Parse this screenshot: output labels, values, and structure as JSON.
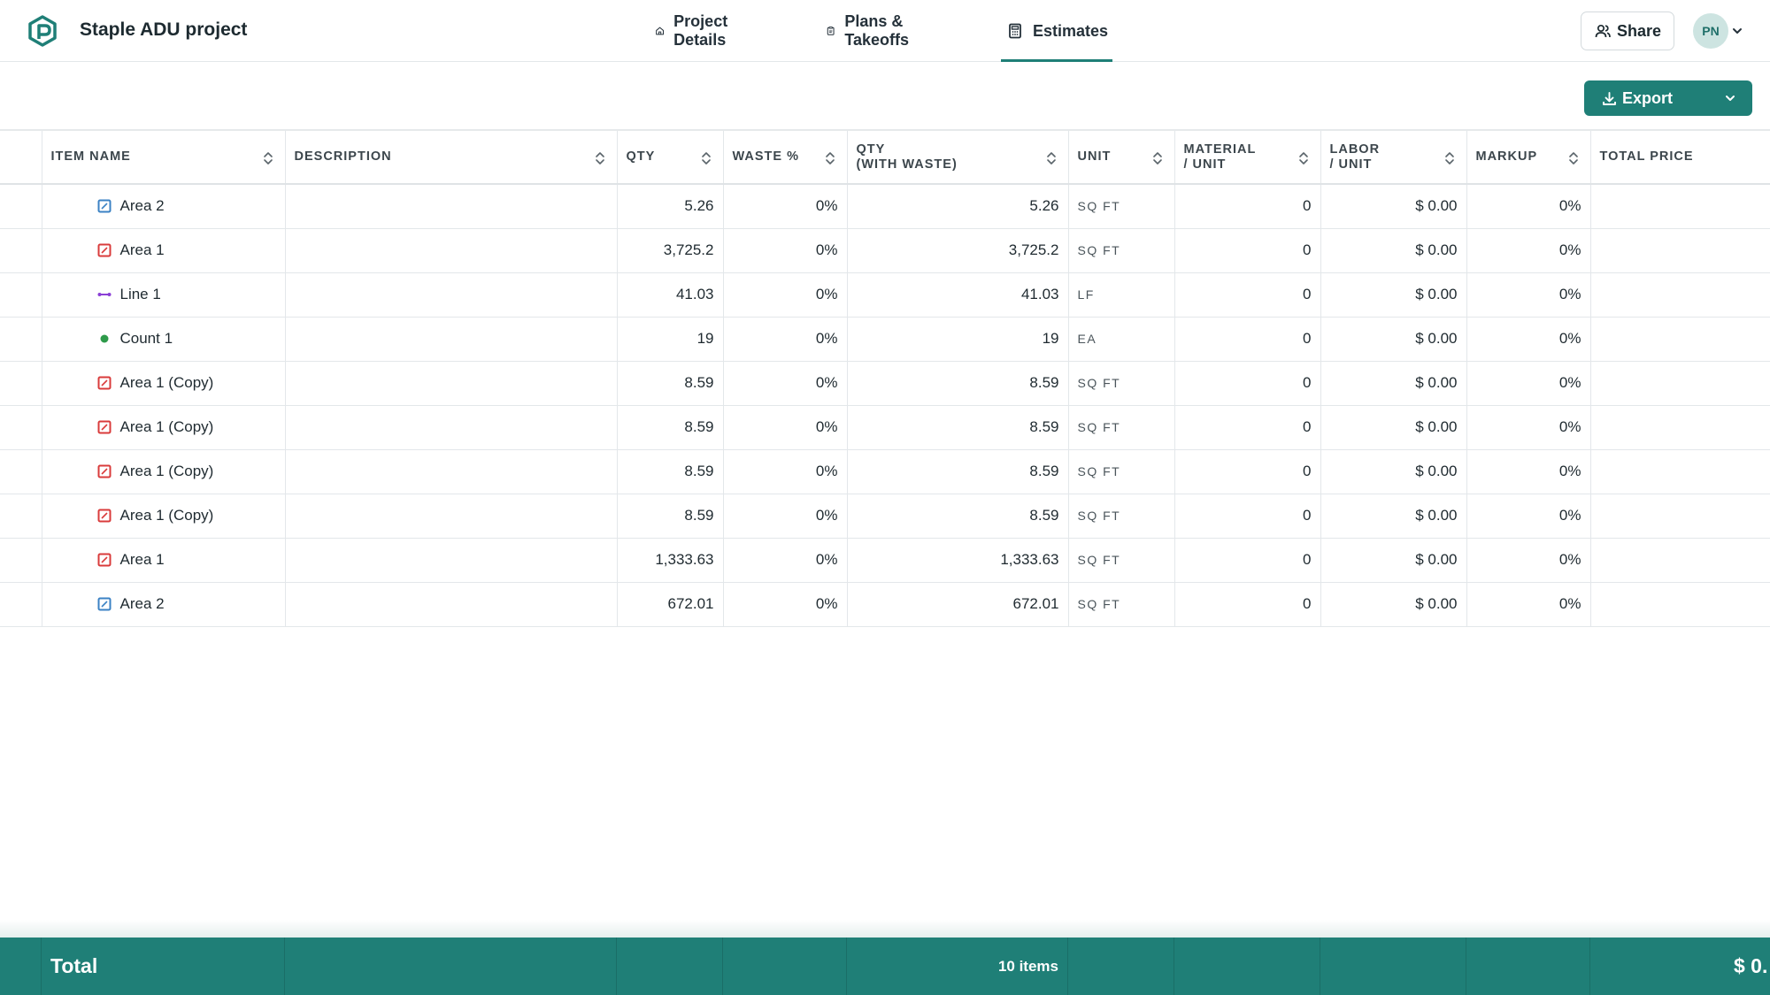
{
  "header": {
    "project_title": "Staple ADU project",
    "tabs": [
      {
        "label": "Project Details",
        "icon": "home-icon"
      },
      {
        "label": "Plans & Takeoffs",
        "icon": "clipboard-icon"
      },
      {
        "label": "Estimates",
        "icon": "calculator-icon",
        "active": true
      }
    ],
    "share_label": "Share",
    "avatar_initials": "PN"
  },
  "toolbar": {
    "export_label": "Export"
  },
  "table": {
    "columns": {
      "item_name": "ITEM NAME",
      "description": "DESCRIPTION",
      "qty": "QTY",
      "waste": "WASTE %",
      "qty_waste_1": "QTY",
      "qty_waste_2": "(WITH WASTE)",
      "unit": "UNIT",
      "material_1": "MATERIAL",
      "material_2": "/ UNIT",
      "labor_1": "LABOR",
      "labor_2": "/ UNIT",
      "markup": "MARKUP",
      "total_price": "TOTAL PRICE"
    },
    "rows": [
      {
        "type": "area-blue",
        "name": "Area 2",
        "description": "",
        "qty": "5.26",
        "waste": "0%",
        "qty_waste": "5.26",
        "unit": "SQ FT",
        "material": "0",
        "labor": "$ 0.00",
        "markup": "0%",
        "total": ""
      },
      {
        "type": "area-red",
        "name": "Area 1",
        "description": "",
        "qty": "3,725.2",
        "waste": "0%",
        "qty_waste": "3,725.2",
        "unit": "SQ FT",
        "material": "0",
        "labor": "$ 0.00",
        "markup": "0%",
        "total": ""
      },
      {
        "type": "line-purple",
        "name": "Line 1",
        "description": "",
        "qty": "41.03",
        "waste": "0%",
        "qty_waste": "41.03",
        "unit": "LF",
        "material": "0",
        "labor": "$ 0.00",
        "markup": "0%",
        "total": ""
      },
      {
        "type": "count-green",
        "name": "Count 1",
        "description": "",
        "qty": "19",
        "waste": "0%",
        "qty_waste": "19",
        "unit": "EA",
        "material": "0",
        "labor": "$ 0.00",
        "markup": "0%",
        "total": ""
      },
      {
        "type": "area-red",
        "name": "Area 1 (Copy)",
        "description": "",
        "qty": "8.59",
        "waste": "0%",
        "qty_waste": "8.59",
        "unit": "SQ FT",
        "material": "0",
        "labor": "$ 0.00",
        "markup": "0%",
        "total": ""
      },
      {
        "type": "area-red",
        "name": "Area 1 (Copy)",
        "description": "",
        "qty": "8.59",
        "waste": "0%",
        "qty_waste": "8.59",
        "unit": "SQ FT",
        "material": "0",
        "labor": "$ 0.00",
        "markup": "0%",
        "total": ""
      },
      {
        "type": "area-red",
        "name": "Area 1 (Copy)",
        "description": "",
        "qty": "8.59",
        "waste": "0%",
        "qty_waste": "8.59",
        "unit": "SQ FT",
        "material": "0",
        "labor": "$ 0.00",
        "markup": "0%",
        "total": ""
      },
      {
        "type": "area-red",
        "name": "Area 1 (Copy)",
        "description": "",
        "qty": "8.59",
        "waste": "0%",
        "qty_waste": "8.59",
        "unit": "SQ FT",
        "material": "0",
        "labor": "$ 0.00",
        "markup": "0%",
        "total": ""
      },
      {
        "type": "area-red",
        "name": "Area 1",
        "description": "",
        "qty": "1,333.63",
        "waste": "0%",
        "qty_waste": "1,333.63",
        "unit": "SQ FT",
        "material": "0",
        "labor": "$ 0.00",
        "markup": "0%",
        "total": ""
      },
      {
        "type": "area-blue",
        "name": "Area 2",
        "description": "",
        "qty": "672.01",
        "waste": "0%",
        "qty_waste": "672.01",
        "unit": "SQ FT",
        "material": "0",
        "labor": "$ 0.00",
        "markup": "0%",
        "total": ""
      }
    ]
  },
  "footer": {
    "total_label": "Total",
    "item_count": "10 items",
    "total_price": "$ 0."
  },
  "colors": {
    "accent": "#1f7f77",
    "area_blue": "#3b82c4",
    "area_red": "#d93b3b",
    "line_purple": "#8b3fd6",
    "count_green": "#2e9a4a"
  }
}
